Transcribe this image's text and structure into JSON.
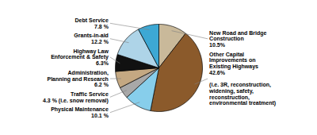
{
  "chart_data": {
    "type": "pie",
    "categories": [
      "New Road and Bridge\nConstruction\n10.5%",
      "Other Capital\nImprovements on\nExisting Highways\n42.6%\n\n(i.e. 3R, reconstruction,\nwidening, safety,\nreconstruction,\nenvironmental treatment)",
      "Physical Maintenance\n10.1 %",
      "Traffic Service\n4.3 % (i.e. snow removal)",
      "Administration,\nPlanning and Research\n6.2 %",
      "Highway Law\nEnforcement & Safety\n6.3%",
      "Grants-in-aid\n12.2 %",
      "Debt Service\n7.8 %"
    ],
    "values": [
      10.5,
      42.6,
      10.1,
      4.3,
      6.2,
      6.3,
      12.2,
      7.8
    ],
    "colors": [
      "#c9b99a",
      "#8b5a2b",
      "#87ceeb",
      "#a8a8a8",
      "#c4a882",
      "#111111",
      "#aed4e8",
      "#3da8d4"
    ]
  }
}
